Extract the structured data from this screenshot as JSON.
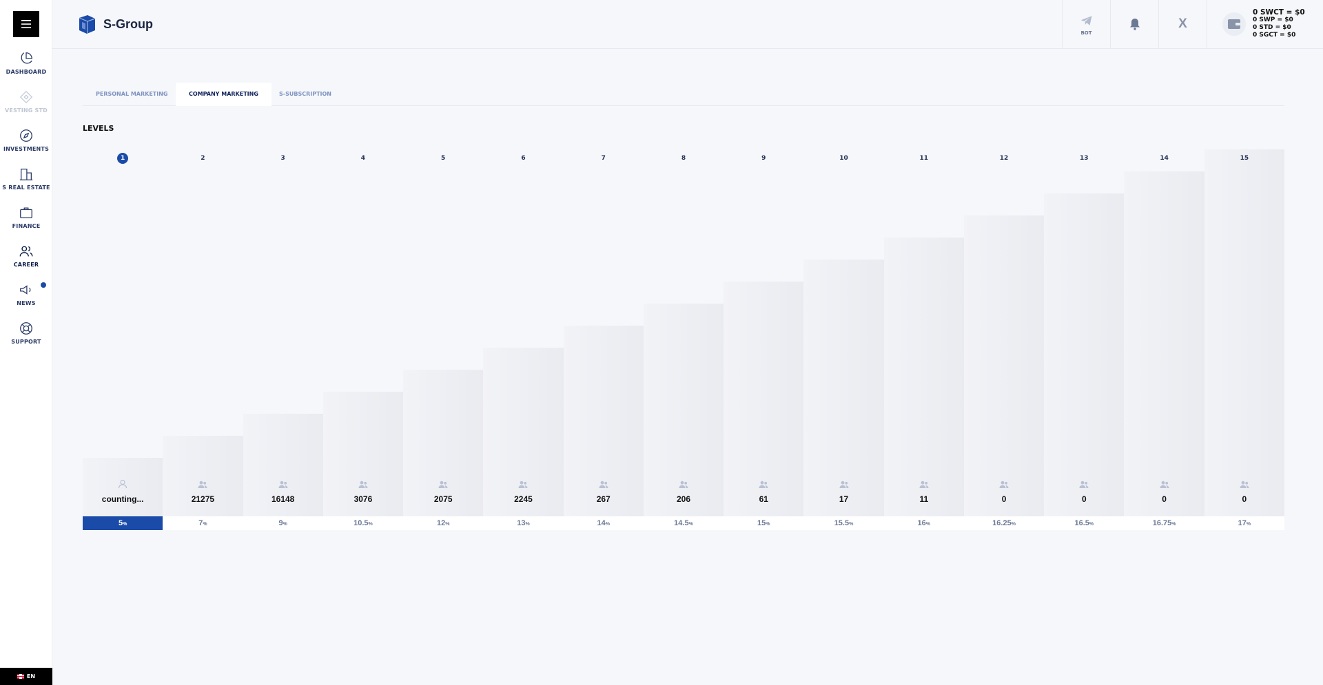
{
  "app": {
    "name": "S-Group"
  },
  "sidebar": {
    "items": [
      {
        "label": "DASHBOARD",
        "icon": "pie-chart-icon"
      },
      {
        "label": "VESTING STD",
        "icon": "diamond-icon",
        "disabled": true
      },
      {
        "label": "INVESTMENTS",
        "icon": "compass-icon"
      },
      {
        "label": "S REAL ESTATE",
        "icon": "building-icon"
      },
      {
        "label": "FINANCE",
        "icon": "briefcase-icon"
      },
      {
        "label": "CAREER",
        "icon": "users-icon",
        "active": true
      },
      {
        "label": "NEWS",
        "icon": "megaphone-icon",
        "has_notification": true
      },
      {
        "label": "SUPPORT",
        "icon": "lifebuoy-icon"
      }
    ],
    "language": "EN"
  },
  "header": {
    "bot_label": "BOT",
    "x_label": "X",
    "balances": {
      "main": "0 SWCT = $0",
      "swp": "0 SWP = $0",
      "std": "0 STD = $0",
      "sgct": "0 SGCT = $0"
    }
  },
  "tabs": [
    {
      "label": "PERSONAL MARKETING"
    },
    {
      "label": "COMPANY MARKETING",
      "active": true
    },
    {
      "label": "S-SUBSCRIPTION"
    }
  ],
  "levels": {
    "title": "LEVELS",
    "columns": [
      {
        "level": "1",
        "count": "counting...",
        "percent": "5",
        "active": true
      },
      {
        "level": "2",
        "count": "21275",
        "percent": "7"
      },
      {
        "level": "3",
        "count": "16148",
        "percent": "9"
      },
      {
        "level": "4",
        "count": "3076",
        "percent": "10.5"
      },
      {
        "level": "5",
        "count": "2075",
        "percent": "12"
      },
      {
        "level": "6",
        "count": "2245",
        "percent": "13"
      },
      {
        "level": "7",
        "count": "267",
        "percent": "14"
      },
      {
        "level": "8",
        "count": "206",
        "percent": "14.5"
      },
      {
        "level": "9",
        "count": "61",
        "percent": "15"
      },
      {
        "level": "10",
        "count": "17",
        "percent": "15.5"
      },
      {
        "level": "11",
        "count": "11",
        "percent": "16"
      },
      {
        "level": "12",
        "count": "0",
        "percent": "16.25"
      },
      {
        "level": "13",
        "count": "0",
        "percent": "16.5"
      },
      {
        "level": "14",
        "count": "0",
        "percent": "16.75"
      },
      {
        "level": "15",
        "count": "0",
        "percent": "17"
      }
    ],
    "percent_unit": "%"
  },
  "colors": {
    "accent": "#1a4ba8",
    "text_dark": "#0c1b46",
    "muted": "#7f93c0"
  }
}
